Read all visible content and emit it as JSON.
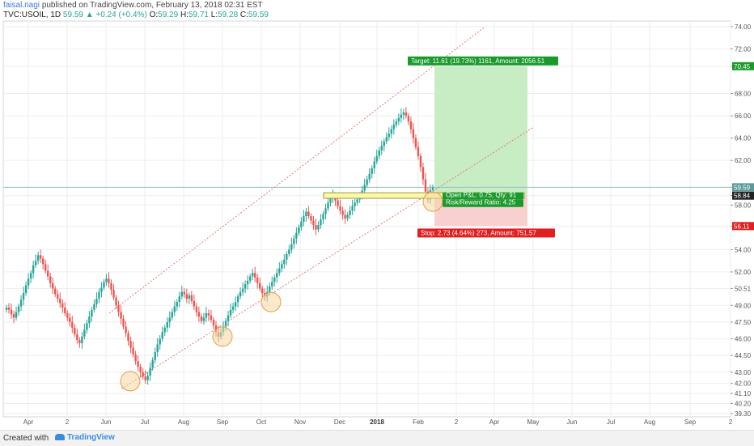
{
  "header": {
    "author": "faisal.nagi",
    "published": "published on TradingView.com, February 13, 2018 02:31 EST"
  },
  "ticker": {
    "symbol": "TVC:USOIL, 1D",
    "last": "59.59",
    "change": "▲ +0.24 (+0.4%)",
    "open_label": "O:",
    "open": "59.29",
    "high_label": "H:",
    "high": "59.71",
    "low_label": "L:",
    "low": "59.28",
    "close_label": "C:",
    "close": "59.59"
  },
  "footer": {
    "created_with": "Created with",
    "brand": "TradingView"
  },
  "colors": {
    "up": "#26a69a",
    "down": "#ef5350",
    "grid": "#eeeeee",
    "channel": "#e07b7b",
    "target": "#c8ecc4",
    "stop": "#f8d0d0",
    "circle_fill": "#f5d7a1",
    "circle_stroke": "#d9a24a",
    "zone": "#fdf7a8"
  },
  "chart_data": {
    "type": "candlestick",
    "y_ticks": [
      "74.00",
      "72.00",
      "70.45",
      "68.00",
      "66.00",
      "64.00",
      "62.00",
      "59.59",
      "58.84",
      "58.00",
      "56.11",
      "54.00",
      "52.00",
      "50.51",
      "49.00",
      "47.50",
      "46.00",
      "44.50",
      "43.00",
      "42.00",
      "41.10",
      "40.20",
      "39.30"
    ],
    "ylim": [
      39.0,
      74.5
    ],
    "x_ticks": [
      "Apr",
      "2",
      "Jun",
      "Jul",
      "Aug",
      "Sep",
      "Oct",
      "Nov",
      "Dec",
      "2018",
      "Feb",
      "2",
      "Apr",
      "May",
      "Jun",
      "Jul",
      "Aug",
      "Sep",
      "2"
    ],
    "price_tags": [
      {
        "value": 70.45,
        "text": "70.45",
        "color": "#1a9a2a"
      },
      {
        "value": 59.59,
        "text": "59.59",
        "color": "#5a9a9a"
      },
      {
        "value": 58.84,
        "text": "58.84",
        "color": "#222222"
      },
      {
        "value": 56.11,
        "text": "56.11",
        "color": "#e02020"
      }
    ],
    "current_price": 59.59,
    "trade": {
      "entry": 58.84,
      "target": 70.45,
      "stop": 56.11,
      "target_label": "Target: 11.61 (19.73%) 1161, Amount: 2056.51",
      "stop_label": "Stop: 2.73 (4.64%) 273, Amount: 751.57",
      "pnl_label": "Open P&L: 0.75, Qty: 91",
      "rr_label": "Risk/Reward Ratio: 4.25"
    },
    "channel": {
      "upper": [
        [
          "Jun 2017",
          48.3
        ],
        [
          "Feb 2018",
          68.2
        ]
      ],
      "lower": [
        [
          "Jun 2017",
          41.5
        ],
        [
          "Apr 2018",
          65.0
        ]
      ]
    },
    "support_touches": [
      {
        "date": "Jun 2017",
        "price": 42.2
      },
      {
        "date": "Sep 2017",
        "price": 46.2
      },
      {
        "date": "Oct 2017",
        "price": 49.3
      },
      {
        "date": "Feb 2018",
        "price": 58.3
      }
    ],
    "zone": {
      "low": 58.6,
      "high": 59.1
    },
    "closes": [
      48.8,
      48.6,
      48.2,
      47.9,
      48.4,
      48.9,
      49.5,
      50.1,
      50.8,
      51.4,
      51.9,
      52.6,
      53.0,
      53.5,
      53.2,
      52.7,
      52.1,
      51.6,
      51.0,
      50.5,
      50.0,
      49.6,
      49.2,
      48.8,
      48.3,
      47.9,
      47.5,
      47.0,
      46.4,
      45.9,
      45.6,
      46.2,
      46.8,
      47.4,
      48.0,
      48.6,
      49.1,
      49.6,
      50.2,
      50.6,
      51.1,
      51.4,
      51.0,
      50.4,
      49.7,
      49.0,
      48.4,
      47.8,
      47.1,
      46.5,
      45.8,
      45.2,
      44.6,
      44.0,
      43.5,
      43.0,
      42.6,
      42.3,
      42.7,
      43.4,
      44.1,
      44.8,
      45.5,
      46.0,
      46.6,
      47.0,
      47.5,
      47.9,
      48.4,
      48.9,
      49.3,
      49.8,
      50.2,
      50.0,
      49.6,
      49.9,
      49.4,
      48.9,
      48.4,
      48.0,
      47.6,
      47.9,
      48.3,
      48.1,
      47.7,
      47.2,
      46.6,
      46.2,
      46.6,
      47.1,
      47.6,
      48.1,
      48.6,
      48.9,
      49.3,
      49.8,
      50.2,
      50.5,
      50.9,
      51.2,
      51.6,
      51.9,
      51.5,
      51.0,
      50.5,
      50.1,
      49.8,
      50.2,
      50.7,
      51.1,
      51.5,
      51.9,
      52.3,
      52.7,
      53.1,
      53.6,
      54.0,
      54.5,
      55.0,
      55.5,
      56.0,
      56.5,
      57.0,
      57.4,
      57.0,
      56.6,
      56.2,
      55.8,
      56.2,
      56.7,
      57.2,
      57.7,
      58.2,
      58.6,
      58.9,
      58.4,
      57.9,
      57.5,
      57.1,
      56.8,
      57.1,
      57.5,
      57.9,
      58.2,
      58.5,
      58.9,
      59.3,
      59.8,
      60.3,
      60.8,
      61.3,
      61.9,
      62.4,
      62.9,
      63.3,
      63.7,
      64.1,
      64.4,
      64.8,
      65.2,
      65.5,
      65.8,
      66.1,
      66.3,
      66.0,
      65.5,
      64.8,
      64.0,
      63.2,
      62.4,
      61.4,
      60.3,
      59.2,
      58.5,
      59.35,
      59.59
    ]
  }
}
